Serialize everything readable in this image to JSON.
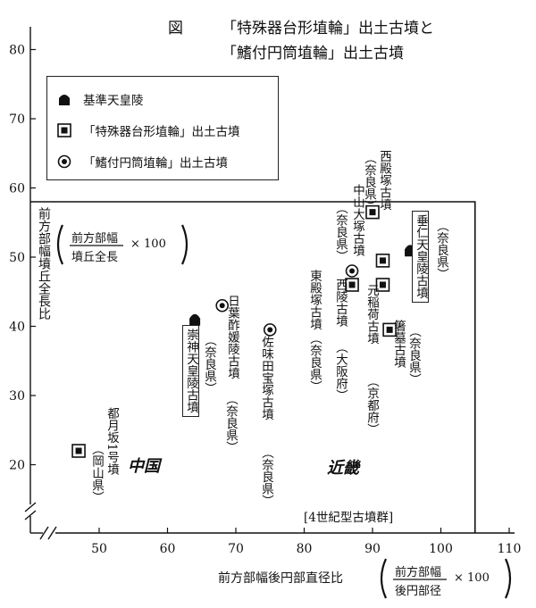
{
  "title": {
    "line1_prefix": "図",
    "line1": "「特殊器台形埴輪」出土古墳と",
    "line2": "「鰭付円筒埴輪」出土古墳"
  },
  "legend": {
    "items": [
      {
        "symbol": "filled-mound",
        "label": "基準天皇陵"
      },
      {
        "symbol": "boxed-square",
        "label": "「特殊器台形埴輪」出土古墳"
      },
      {
        "symbol": "double-circle",
        "label": "「鰭付円筒埴輪」出土古墳"
      }
    ]
  },
  "y_axis": {
    "label": "前方部幅墳丘全長比",
    "formula_numerator": "前方部幅",
    "formula_denominator": "墳丘全長",
    "formula_multiplier": "× 100"
  },
  "x_axis": {
    "label": "前方部幅後円部直径比",
    "formula_numerator": "前方部幅",
    "formula_denominator": "後円部径",
    "formula_multiplier": "× 100"
  },
  "annotations": {
    "group_note": "[4世紀型古墳群]",
    "handwritten_chugoku": "中国",
    "handwritten_kinki": "近畿"
  },
  "chart_data": {
    "type": "scatter",
    "title": "「特殊器台形埴輪」出土古墳と「鰭付円筒埴輪」出土古墳",
    "xlabel": "前方部幅後円部直径比",
    "ylabel": "前方部幅墳丘全長比",
    "xlim": [
      40,
      110
    ],
    "ylim": [
      10,
      80
    ],
    "x_ticks": [
      50,
      60,
      70,
      80,
      90,
      100,
      110
    ],
    "y_ticks": [
      20,
      30,
      40,
      50,
      60,
      70,
      80
    ],
    "axis_break": true,
    "grid": false,
    "legend_position": "top-left",
    "series": [
      {
        "name": "基準天皇陵",
        "marker": "filled-mound",
        "points": [
          {
            "x": 64,
            "y": 41,
            "label": "崇神天皇陵古墳",
            "note": "（奈良県）",
            "boxed": true
          },
          {
            "x": 95.5,
            "y": 51,
            "label": "垂仁天皇陵古墳",
            "note": "（奈良県）",
            "boxed": true
          }
        ]
      },
      {
        "name": "「特殊器台形埴輪」出土古墳",
        "marker": "boxed-square",
        "points": [
          {
            "x": 47,
            "y": 22,
            "label": "都月坂1号墳",
            "note": "（岡山県）"
          },
          {
            "x": 90,
            "y": 56.5,
            "label": "西殿塚古墳",
            "note": "（奈良県）"
          },
          {
            "x": 91.5,
            "y": 49.5,
            "label": "中山大塚古墳",
            "note": "（奈良県）"
          },
          {
            "x": 91.5,
            "y": 46,
            "label": "元稲荷古墳",
            "note": "（京都府）"
          },
          {
            "x": 92.5,
            "y": 39.5,
            "label": "東殿塚古墳",
            "note": "（奈良県）"
          },
          {
            "x": 87,
            "y": 46,
            "label": "箸墓古墳",
            "note": "（奈良県）"
          }
        ]
      },
      {
        "name": "「鰭付円筒埴輪」出土古墳",
        "marker": "double-circle",
        "points": [
          {
            "x": 68,
            "y": 43,
            "label": "日葉酢媛陵古墳",
            "note": "（奈良県）"
          },
          {
            "x": 75,
            "y": 39.5,
            "label": "佐味田宝塚古墳",
            "note": "（奈良県）"
          },
          {
            "x": 87,
            "y": 48,
            "label": "西陵古墳",
            "note": "（大阪府）"
          }
        ]
      }
    ],
    "annotations": [
      "[4世紀型古墳群]",
      "中国",
      "近畿"
    ]
  }
}
